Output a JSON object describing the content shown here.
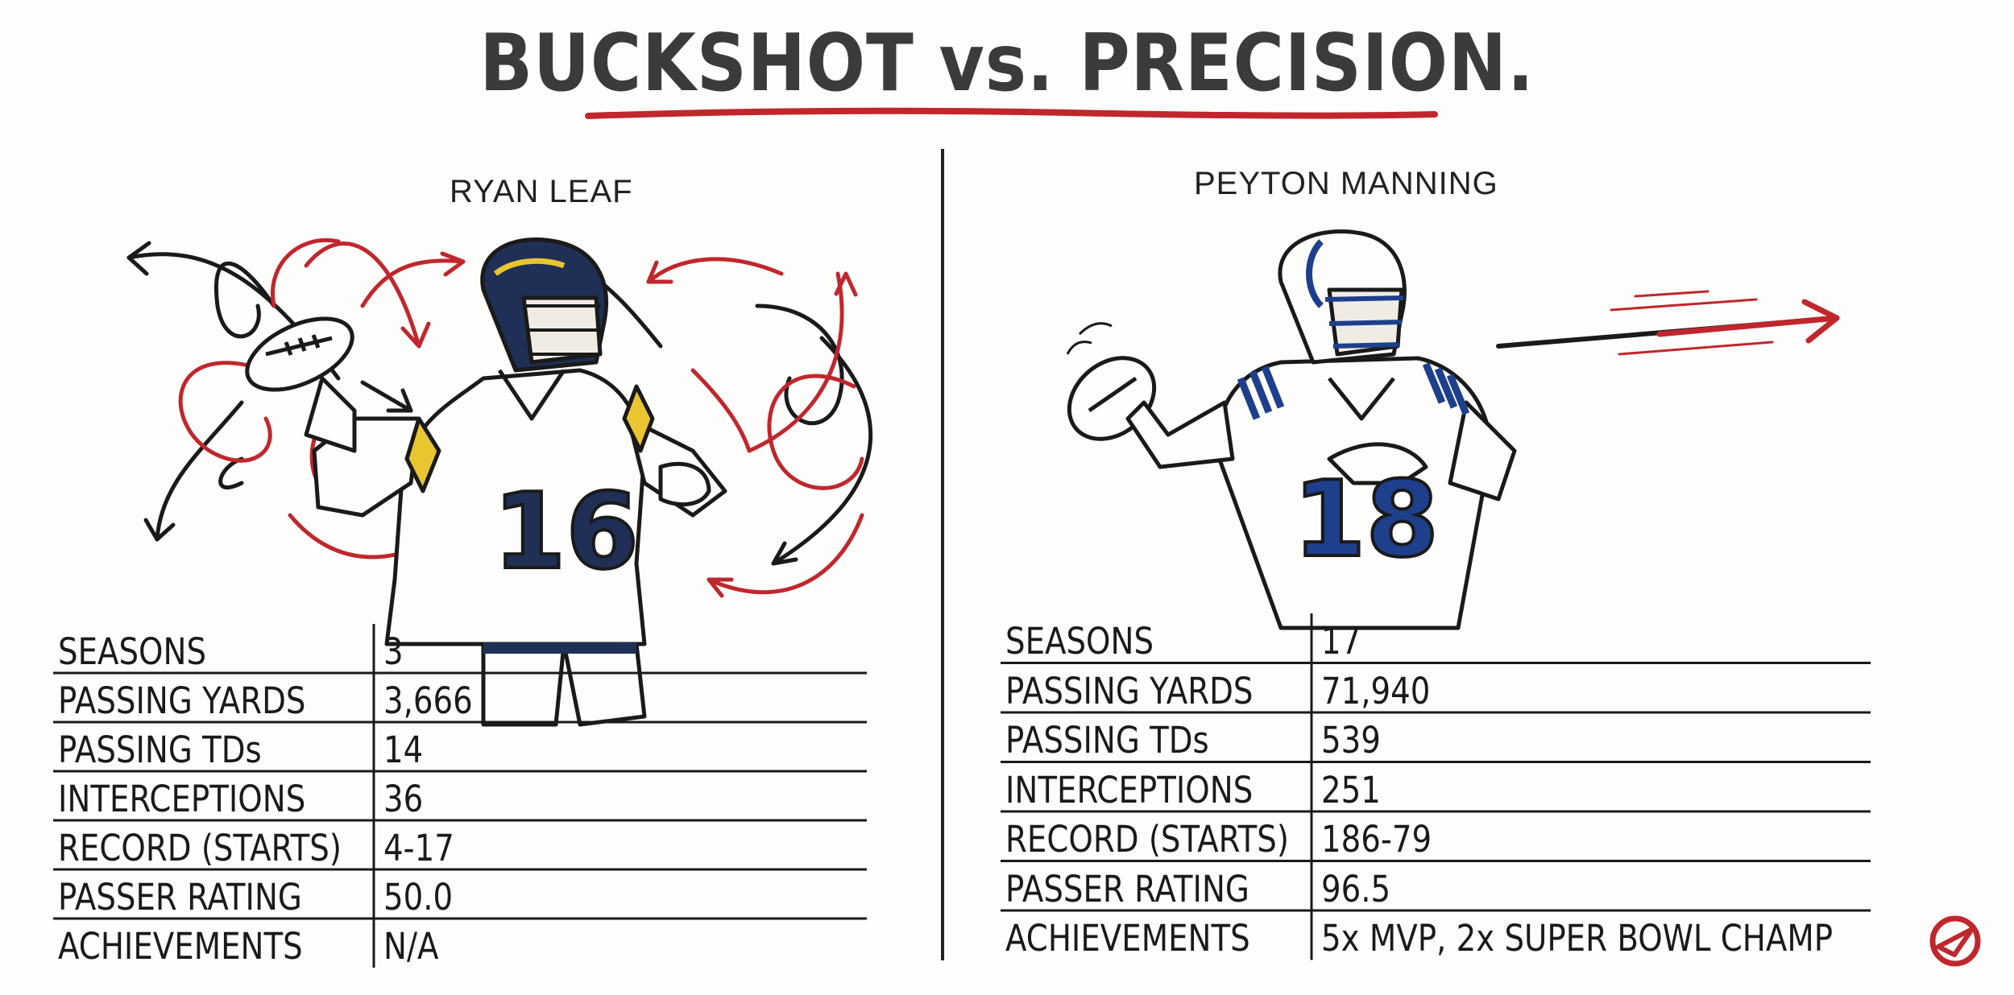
{
  "title": "BUCKSHOT vs. PRECISION.",
  "left_player": {
    "name": "RYAN LEAF",
    "jersey_number": "16",
    "stats": [
      {
        "label": "SEASONS",
        "value": "3"
      },
      {
        "label": "PASSING YARDS",
        "value": "3,666"
      },
      {
        "label": "PASSING TDs",
        "value": "14"
      },
      {
        "label": "INTERCEPTIONS",
        "value": "36"
      },
      {
        "label": "RECORD (STARTS)",
        "value": "4-17"
      },
      {
        "label": "PASSER RATING",
        "value": "50.0"
      },
      {
        "label": "ACHIEVEMENTS",
        "value": "N/A"
      }
    ]
  },
  "right_player": {
    "name": "PEYTON MANNING",
    "jersey_number": "18",
    "stats": [
      {
        "label": "SEASONS",
        "value": "17"
      },
      {
        "label": "PASSING YARDS",
        "value": "71,940"
      },
      {
        "label": "PASSING TDs",
        "value": "539"
      },
      {
        "label": "INTERCEPTIONS",
        "value": "251"
      },
      {
        "label": "RECORD (STARTS)",
        "value": "186-79"
      },
      {
        "label": "PASSER RATING",
        "value": "96.5"
      },
      {
        "label": "ACHIEVEMENTS",
        "value": "5x MVP, 2x SUPER BOWL CHAMP"
      }
    ]
  },
  "colors": {
    "accent_red": "#c0272d",
    "chargers_navy": "#1f2f55",
    "chargers_gold": "#e8c531",
    "colts_blue": "#1e3f8c",
    "ink": "#1a1a1a"
  },
  "icons": {
    "logo": "red-triangle-logo-icon",
    "chaos_arrows": "scattered-arrows-icon",
    "precision_arrow": "straight-arrow-icon"
  }
}
